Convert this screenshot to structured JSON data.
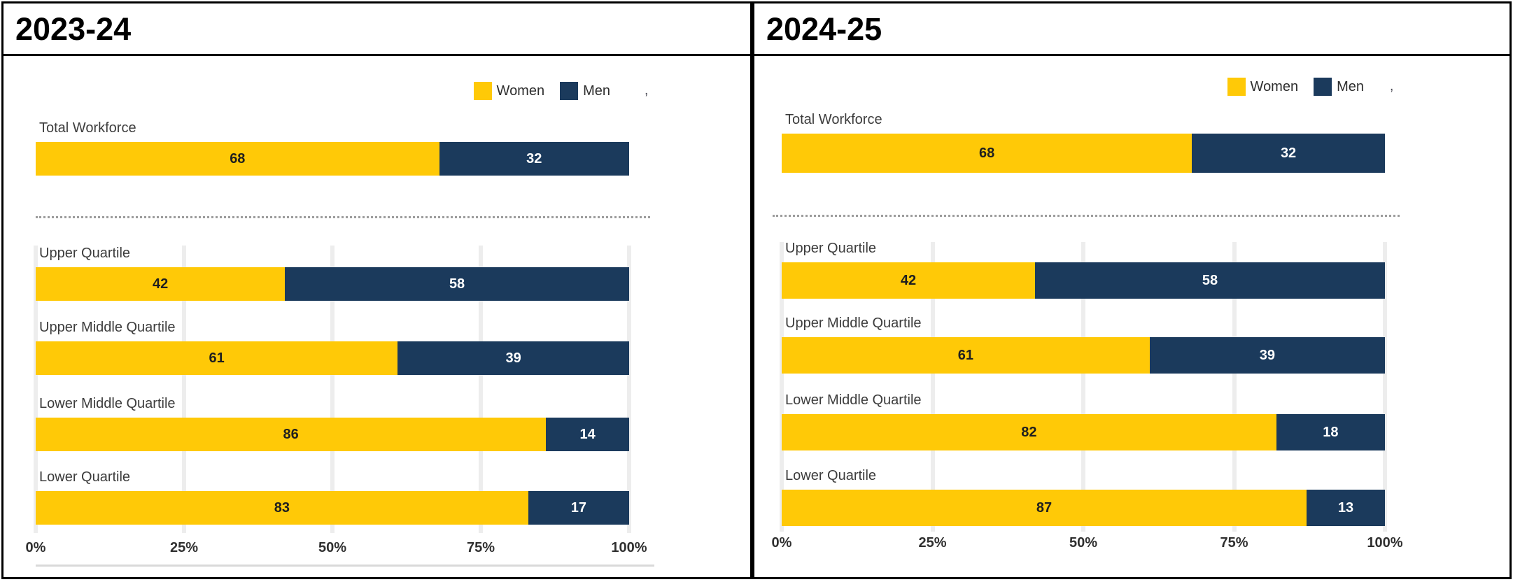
{
  "colors": {
    "women": "#FFC907",
    "men": "#1B3A5C",
    "panel_border": "#000000",
    "category_text": "#3C3C3C",
    "value_on_women": "#1F1F1F",
    "value_on_men": "#FFFFFF",
    "gridline": "#EDEDED",
    "dotted_separator": "#9C9C9C",
    "baseline": "#D9D9D9",
    "axis_text": "#303030"
  },
  "legend": {
    "items": [
      "Women",
      "Men"
    ],
    "artifact": ","
  },
  "chart_data": [
    {
      "type": "bar",
      "stacked": true,
      "orientation": "horizontal",
      "title": "2023-24",
      "categories": [
        "Total Workforce",
        "Upper Quartile",
        "Upper Middle Quartile",
        "Lower Middle Quartile",
        "Lower Quartile"
      ],
      "series": [
        {
          "name": "Women",
          "color": "#FFC907",
          "values": [
            68,
            42,
            61,
            86,
            83
          ]
        },
        {
          "name": "Men",
          "color": "#1B3A5C",
          "values": [
            32,
            58,
            39,
            14,
            17
          ]
        }
      ],
      "x_ticks": [
        "0%",
        "25%",
        "50%",
        "75%",
        "100%"
      ],
      "xlim": [
        0,
        100
      ],
      "grid": true,
      "legend_position": "top-right",
      "separator_after": "Total Workforce"
    },
    {
      "type": "bar",
      "stacked": true,
      "orientation": "horizontal",
      "title": "2024-25",
      "categories": [
        "Total Workforce",
        "Upper Quartile",
        "Upper Middle Quartile",
        "Lower Middle Quartile",
        "Lower Quartile"
      ],
      "series": [
        {
          "name": "Women",
          "color": "#FFC907",
          "values": [
            68,
            42,
            61,
            82,
            87
          ]
        },
        {
          "name": "Men",
          "color": "#1B3A5C",
          "values": [
            32,
            58,
            39,
            18,
            13
          ]
        }
      ],
      "x_ticks": [
        "0%",
        "25%",
        "50%",
        "75%",
        "100%"
      ],
      "xlim": [
        0,
        100
      ],
      "grid": true,
      "legend_position": "top-right",
      "separator_after": "Total Workforce"
    }
  ]
}
